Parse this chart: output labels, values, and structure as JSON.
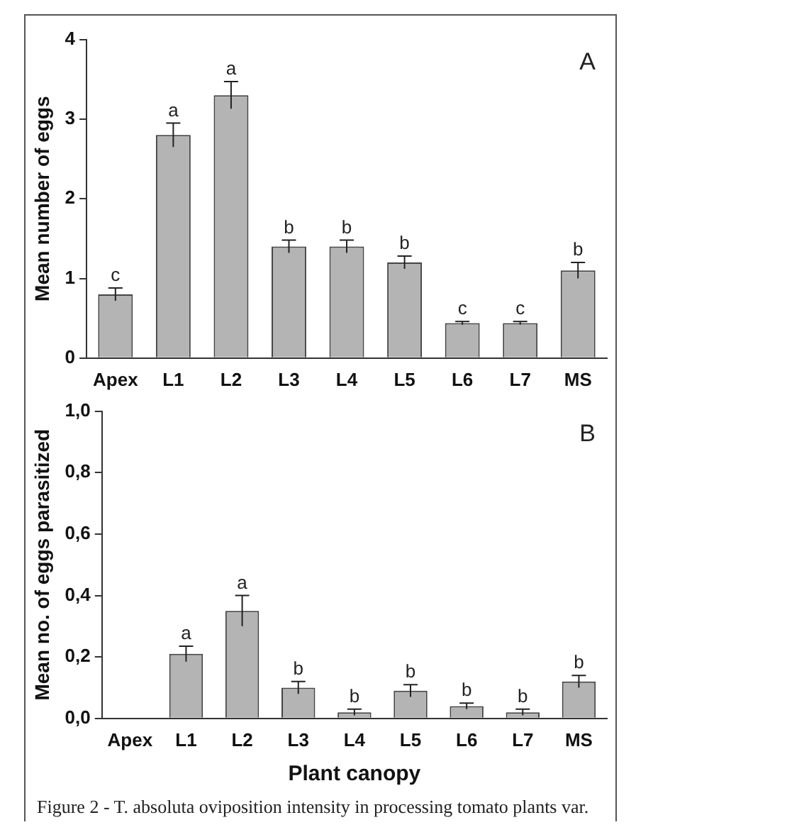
{
  "chart_data": [
    {
      "type": "bar",
      "title": "A",
      "ylabel": "Mean number of eggs",
      "categories": [
        "Apex",
        "L1",
        "L2",
        "L3",
        "L4",
        "L5",
        "L6",
        "L7",
        "MS"
      ],
      "values": [
        0.8,
        2.8,
        3.3,
        1.4,
        1.4,
        1.2,
        0.44,
        0.44,
        1.1
      ],
      "errors": [
        0.08,
        0.15,
        0.17,
        0.08,
        0.08,
        0.08,
        0.02,
        0.02,
        0.1
      ],
      "value_labels": [
        "c",
        "a",
        "a",
        "b",
        "b",
        "b",
        "c",
        "c",
        "b"
      ],
      "color": "#b4b4b4",
      "ylim": [
        0,
        4
      ],
      "yticks": [
        0,
        1,
        2,
        3,
        4
      ],
      "grid": false,
      "legend": false
    },
    {
      "type": "bar",
      "title": "B",
      "xlabel": "Plant canopy",
      "ylabel": "Mean no. of eggs parasitized",
      "categories": [
        "Apex",
        "L1",
        "L2",
        "L3",
        "L4",
        "L5",
        "L6",
        "L7",
        "MS"
      ],
      "values": [
        0,
        0.21,
        0.35,
        0.1,
        0.02,
        0.09,
        0.04,
        0.02,
        0.12
      ],
      "errors": [
        null,
        0.025,
        0.05,
        0.02,
        0.01,
        0.02,
        0.01,
        0.01,
        0.02
      ],
      "value_labels": [
        null,
        "a",
        "a",
        "b",
        "b",
        "b",
        "b",
        "b",
        "b"
      ],
      "color": "#b4b4b4",
      "ylim": [
        0,
        1
      ],
      "yticks": [
        {
          "value": 0,
          "label": "0,0"
        },
        {
          "value": 0.2,
          "label": "0,2"
        },
        {
          "value": 0.4,
          "label": "0,4"
        },
        {
          "value": 0.6,
          "label": "0,6"
        },
        {
          "value": 0.8,
          "label": "0,8"
        },
        {
          "value": 1,
          "label": "1,0"
        }
      ],
      "grid": false,
      "legend": false,
      "annotations": [
        "Figure 2 - T. absoluta oviposition intensity in processing tomato plants var."
      ]
    }
  ]
}
